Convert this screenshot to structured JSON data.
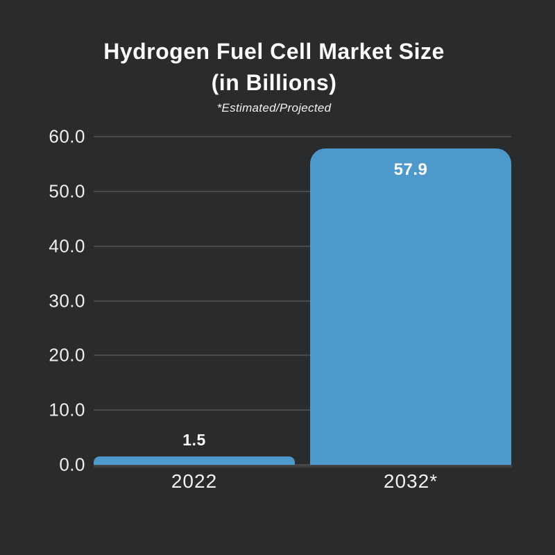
{
  "page": {
    "background_color": "#2a2b2c"
  },
  "title": {
    "line1": "Hydrogen Fuel Cell Market Size",
    "line2": "(in Billions)",
    "subtitle": "*Estimated/Projected"
  },
  "chart_data": {
    "type": "bar",
    "title": "Hydrogen Fuel Cell Market Size (in Billions)",
    "subtitle": "*Estimated/Projected",
    "categories": [
      "2022",
      "2032*"
    ],
    "values": [
      1.5,
      57.9
    ],
    "value_labels": [
      "1.5",
      "57.9"
    ],
    "ylabel": "",
    "xlabel": "",
    "ylim": [
      0,
      60
    ],
    "yticks": [
      {
        "label": "60.0",
        "value": 60
      },
      {
        "label": "50.0",
        "value": 50
      },
      {
        "label": "40.0",
        "value": 40
      },
      {
        "label": "30.0",
        "value": 30
      },
      {
        "label": "20.0",
        "value": 20
      },
      {
        "label": "10.0",
        "value": 10
      },
      {
        "label": "0.0",
        "value": 0
      }
    ],
    "grid": true,
    "legend_position": "none",
    "colors": {
      "bar": "#4e99cb",
      "background": "#2a2b2c",
      "gridline": "#47494a",
      "baseline": "#3c3e3f",
      "text": "#fbfbfb"
    }
  }
}
